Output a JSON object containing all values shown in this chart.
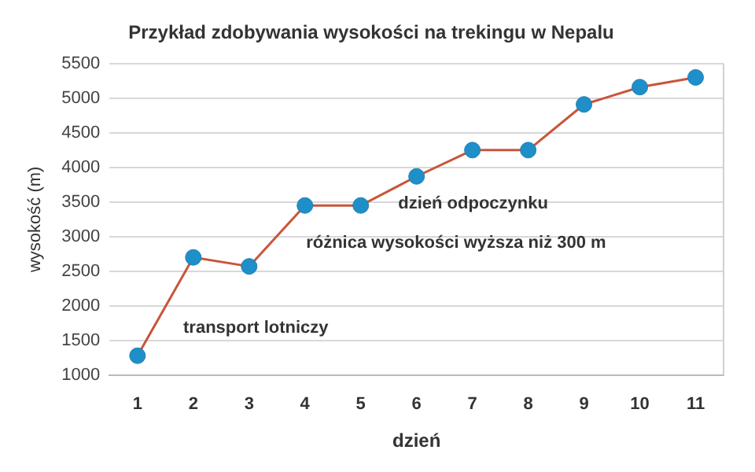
{
  "chart_data": {
    "type": "line",
    "title": "Przykład zdobywania wysokości na trekingu w Nepalu",
    "xlabel": "dzień",
    "ylabel": "wysokość (m)",
    "categories": [
      "1",
      "2",
      "3",
      "4",
      "5",
      "6",
      "7",
      "8",
      "9",
      "10",
      "11"
    ],
    "series": [
      {
        "color": "#c9553a",
        "values": [
          1280,
          2700,
          2570,
          3450,
          3450,
          3870,
          4250,
          4250,
          4910,
          5160,
          5300
        ]
      }
    ],
    "ylim": [
      1000,
      5500
    ],
    "yticks": [
      1000,
      1500,
      2000,
      2500,
      3000,
      3500,
      4000,
      4500,
      5000,
      5500
    ],
    "grid": "y",
    "marker": "circle",
    "line_style": "solid",
    "legend": false,
    "annotations": [
      "dzień odpoczynku",
      "różnica wysokości wyższa niż 300 m",
      "transport lotniczy"
    ]
  }
}
